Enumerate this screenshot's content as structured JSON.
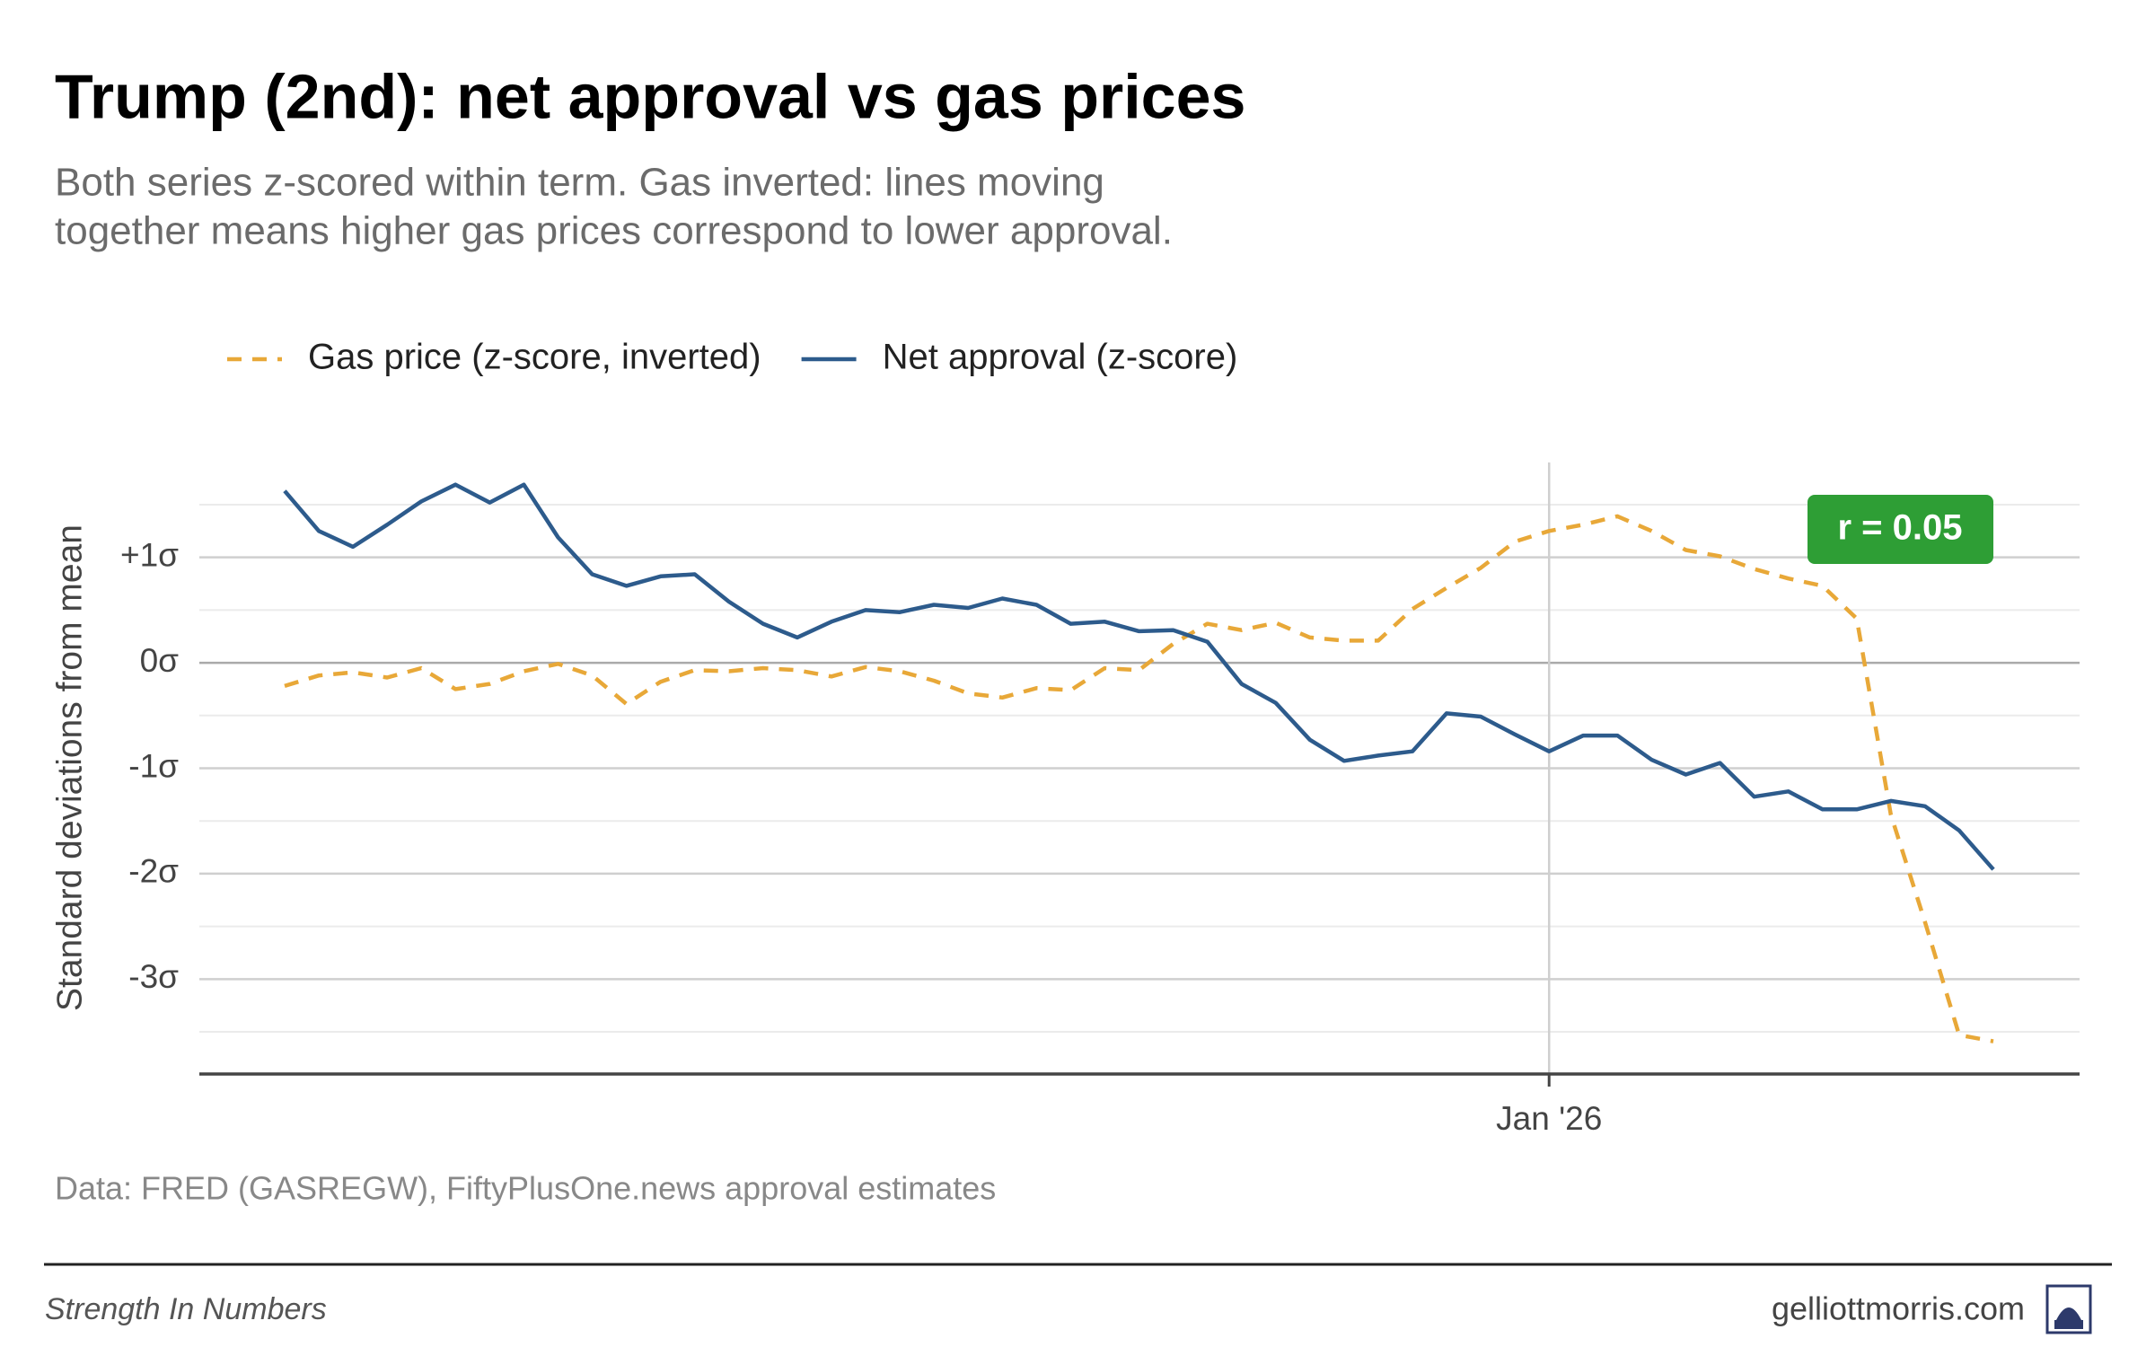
{
  "chart_data": {
    "type": "line",
    "title": "Trump (2nd): net approval vs gas prices",
    "subtitle": [
      "Both series z-scored within term. Gas inverted: lines moving",
      "together means higher gas prices correspond to lower approval."
    ],
    "y_label": "Standard deviations from mean",
    "caption": "Data: FRED (GASREGW), FiftyPlusOne.news approval estimates",
    "annotation": "r = 0.05",
    "annotation_color": "#2e9e35",
    "footer_left": "Strength In Numbers",
    "footer_right": "gelliottmorris.com",
    "categories": [
      null,
      null,
      null,
      null,
      null,
      null,
      null,
      null,
      null,
      null,
      null,
      null,
      null,
      null,
      null,
      null,
      null,
      null,
      null,
      null,
      null,
      null,
      null,
      null,
      null,
      null,
      null,
      null,
      null,
      null,
      null,
      null,
      null,
      null,
      null,
      null,
      null,
      "Jan '26",
      null,
      null,
      null,
      null,
      null,
      null,
      null,
      null,
      null,
      null,
      null,
      null,
      null
    ],
    "series": [
      {
        "name": "Gas price (z-score, inverted)",
        "color": "#e8a838",
        "dash": true,
        "values": [
          -0.22,
          -0.12,
          -0.09,
          -0.14,
          -0.05,
          -0.25,
          -0.2,
          -0.08,
          -0.01,
          -0.12,
          -0.39,
          -0.18,
          -0.07,
          -0.08,
          -0.05,
          -0.07,
          -0.13,
          -0.04,
          -0.08,
          -0.17,
          -0.29,
          -0.33,
          -0.24,
          -0.26,
          -0.05,
          -0.07,
          0.18,
          0.37,
          0.31,
          0.38,
          0.24,
          0.21,
          0.21,
          0.51,
          0.71,
          0.9,
          1.15,
          1.25,
          1.31,
          1.39,
          1.25,
          1.07,
          1.01,
          0.89,
          0.8,
          0.73,
          0.42,
          -1.44,
          -2.46,
          -3.53,
          -3.59
        ]
      },
      {
        "name": "Net approval (z-score)",
        "color": "#2d5b8c",
        "dash": false,
        "values": [
          1.63,
          1.25,
          1.1,
          1.31,
          1.53,
          1.69,
          1.52,
          1.69,
          1.19,
          0.84,
          0.73,
          0.82,
          0.84,
          0.58,
          0.37,
          0.24,
          0.39,
          0.5,
          0.48,
          0.55,
          0.52,
          0.61,
          0.55,
          0.37,
          0.39,
          0.3,
          0.31,
          0.2,
          -0.2,
          -0.38,
          -0.73,
          -0.93,
          -0.88,
          -0.84,
          -0.48,
          -0.51,
          -0.68,
          -0.84,
          -0.69,
          -0.69,
          -0.92,
          -1.06,
          -0.95,
          -1.27,
          -1.22,
          -1.39,
          -1.39,
          -1.31,
          -1.36,
          -1.59,
          -1.96
        ]
      }
    ],
    "ylim": [
      -3.9,
      1.9
    ],
    "yticks": [
      {
        "value": -3,
        "label": "-3σ"
      },
      {
        "value": -2,
        "label": "-2σ"
      },
      {
        "value": -1,
        "label": "-1σ"
      },
      {
        "value": 0,
        "label": "0σ"
      },
      {
        "value": 1,
        "label": "+1σ"
      }
    ],
    "yminorticks": [
      -3.5,
      -2.5,
      -1.5,
      -0.5,
      0.5,
      1.5
    ],
    "grid": true,
    "legend": "top"
  }
}
